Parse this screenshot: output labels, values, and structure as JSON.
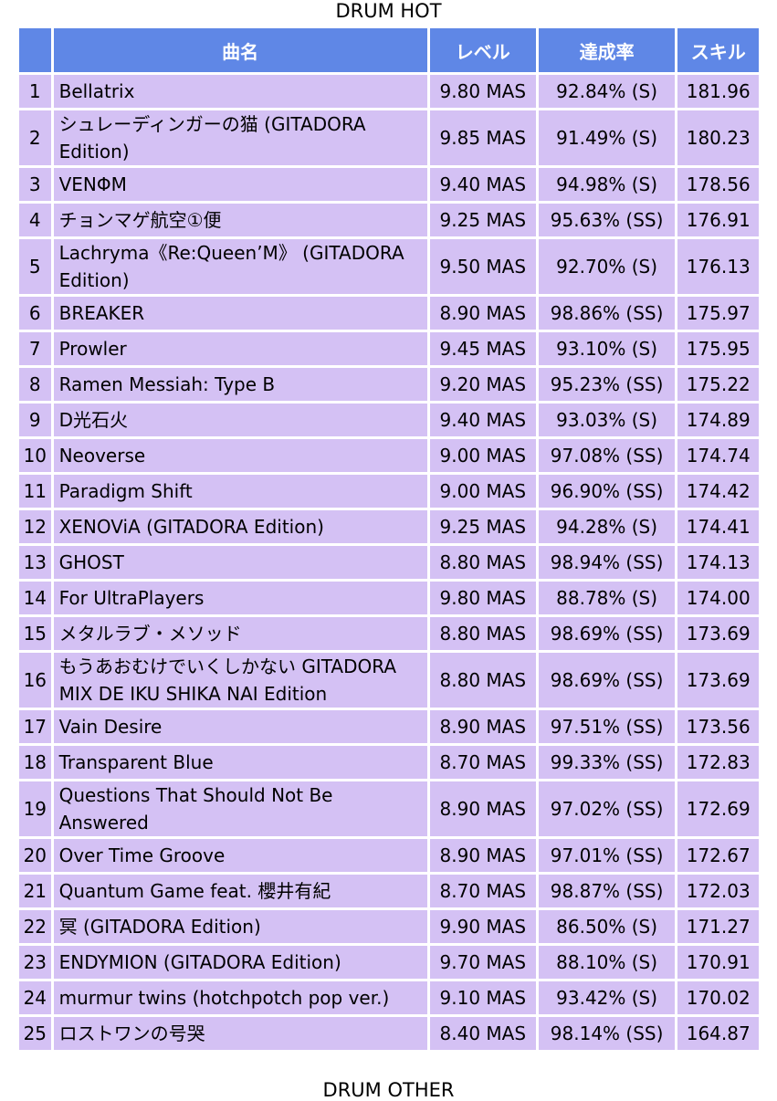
{
  "section_title": "DRUM HOT",
  "next_section_title": "DRUM OTHER",
  "headers": {
    "song": "曲名",
    "level": "レベル",
    "rate": "達成率",
    "skill": "スキル"
  },
  "colors": {
    "header": "#5f87e6",
    "row": "#d4c1f4"
  },
  "rows": [
    {
      "no": "1",
      "song": "Bellatrix",
      "level": "9.80 MAS",
      "rate": "92.84% (S)",
      "skill": "181.96"
    },
    {
      "no": "2",
      "song": "シュレーディンガーの猫 (GITADORA Edition)",
      "level": "9.85 MAS",
      "rate": "91.49% (S)",
      "skill": "180.23"
    },
    {
      "no": "3",
      "song": "VENΦM",
      "level": "9.40 MAS",
      "rate": "94.98% (S)",
      "skill": "178.56"
    },
    {
      "no": "4",
      "song": "チョンマゲ航空①便",
      "level": "9.25 MAS",
      "rate": "95.63% (SS)",
      "skill": "176.91"
    },
    {
      "no": "5",
      "song": "Lachryma《Re:Queen’M》 (GITADORA Edition)",
      "level": "9.50 MAS",
      "rate": "92.70% (S)",
      "skill": "176.13"
    },
    {
      "no": "6",
      "song": "BREAKER",
      "level": "8.90 MAS",
      "rate": "98.86% (SS)",
      "skill": "175.97"
    },
    {
      "no": "7",
      "song": "Prowler",
      "level": "9.45 MAS",
      "rate": "93.10% (S)",
      "skill": "175.95"
    },
    {
      "no": "8",
      "song": "Ramen Messiah: Type B",
      "level": "9.20 MAS",
      "rate": "95.23% (SS)",
      "skill": "175.22"
    },
    {
      "no": "9",
      "song": "D光石火",
      "level": "9.40 MAS",
      "rate": "93.03% (S)",
      "skill": "174.89"
    },
    {
      "no": "10",
      "song": "Neoverse",
      "level": "9.00 MAS",
      "rate": "97.08% (SS)",
      "skill": "174.74"
    },
    {
      "no": "11",
      "song": "Paradigm Shift",
      "level": "9.00 MAS",
      "rate": "96.90% (SS)",
      "skill": "174.42"
    },
    {
      "no": "12",
      "song": "XENOViA (GITADORA Edition)",
      "level": "9.25 MAS",
      "rate": "94.28% (S)",
      "skill": "174.41"
    },
    {
      "no": "13",
      "song": "GHOST",
      "level": "8.80 MAS",
      "rate": "98.94% (SS)",
      "skill": "174.13"
    },
    {
      "no": "14",
      "song": "For UltraPlayers",
      "level": "9.80 MAS",
      "rate": "88.78% (S)",
      "skill": "174.00"
    },
    {
      "no": "15",
      "song": "メタルラブ・メソッド",
      "level": "8.80 MAS",
      "rate": "98.69% (SS)",
      "skill": "173.69"
    },
    {
      "no": "16",
      "song": "もうあおむけでいくしかない GITADORA MIX DE IKU SHIKA NAI Edition",
      "level": "8.80 MAS",
      "rate": "98.69% (SS)",
      "skill": "173.69"
    },
    {
      "no": "17",
      "song": "Vain Desire",
      "level": "8.90 MAS",
      "rate": "97.51% (SS)",
      "skill": "173.56"
    },
    {
      "no": "18",
      "song": "Transparent Blue",
      "level": "8.70 MAS",
      "rate": "99.33% (SS)",
      "skill": "172.83"
    },
    {
      "no": "19",
      "song": "Questions That Should Not Be Answered",
      "level": "8.90 MAS",
      "rate": "97.02% (SS)",
      "skill": "172.69"
    },
    {
      "no": "20",
      "song": "Over Time Groove",
      "level": "8.90 MAS",
      "rate": "97.01% (SS)",
      "skill": "172.67"
    },
    {
      "no": "21",
      "song": "Quantum Game feat. 櫻井有紀",
      "level": "8.70 MAS",
      "rate": "98.87% (SS)",
      "skill": "172.03"
    },
    {
      "no": "22",
      "song": "冥 (GITADORA Edition)",
      "level": "9.90 MAS",
      "rate": "86.50% (S)",
      "skill": "171.27"
    },
    {
      "no": "23",
      "song": "ENDYMION (GITADORA Edition)",
      "level": "9.70 MAS",
      "rate": "88.10% (S)",
      "skill": "170.91"
    },
    {
      "no": "24",
      "song": "murmur twins (hotchpotch pop ver.)",
      "level": "9.10 MAS",
      "rate": "93.42% (S)",
      "skill": "170.02"
    },
    {
      "no": "25",
      "song": "ロストワンの号哭",
      "level": "8.40 MAS",
      "rate": "98.14% (SS)",
      "skill": "164.87"
    }
  ]
}
